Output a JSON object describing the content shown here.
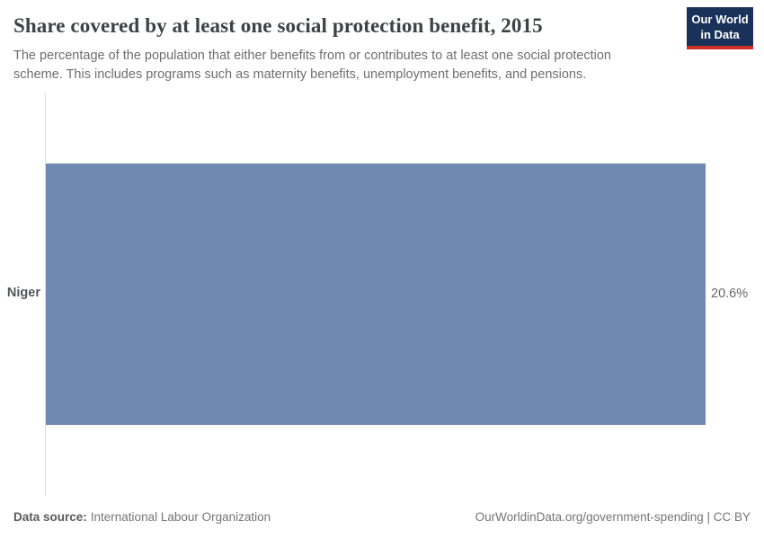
{
  "header": {
    "title": "Share covered by at least one social protection benefit, 2015",
    "subtitle": "The percentage of the population that either benefits from or contributes to at least one social protection scheme. This includes programs such as maternity benefits, unemployment benefits, and pensions.",
    "logo": {
      "line1": "Our World",
      "line2": "in Data"
    }
  },
  "chart_data": {
    "type": "bar",
    "orientation": "horizontal",
    "title": "Share covered by at least one social protection benefit, 2015",
    "categories": [
      "Niger"
    ],
    "values": [
      20.6
    ],
    "value_labels": [
      "20.6%"
    ],
    "xlabel": "",
    "ylabel": "",
    "xlim": [
      0,
      20.6
    ],
    "grid": false,
    "legend": false,
    "bar_color": "#6f8ab2"
  },
  "colors": {
    "bar": "#6f8ab2",
    "logo_background": "#1a3259",
    "logo_stripe": "#cf2f27",
    "axis_line": "#dcdcdc"
  },
  "footer": {
    "datasource_label": "Data source:",
    "datasource_value": "International Labour Organization",
    "credit": "OurWorldinData.org/government-spending | CC BY"
  }
}
